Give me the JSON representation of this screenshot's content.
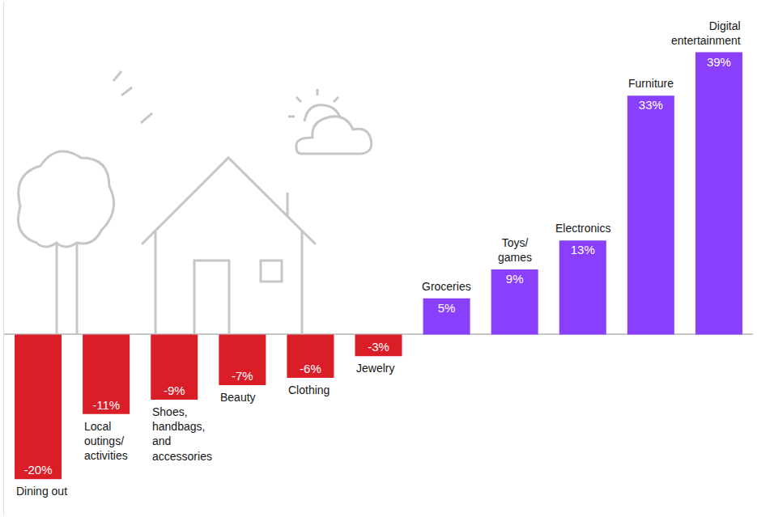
{
  "chart_data": {
    "type": "bar",
    "categories": [
      "Dining out",
      "Local outings/ activities",
      "Shoes, handbags, and accessories",
      "Beauty",
      "Clothing",
      "Jewelry",
      "Groceries",
      "Toys/ games",
      "Electronics",
      "Furniture",
      "Digital entertainment"
    ],
    "values": [
      -20,
      -11,
      -9,
      -7,
      -6,
      -3,
      5,
      9,
      13,
      33,
      39
    ],
    "value_labels": [
      "-20%",
      "-11%",
      "-9%",
      "-7%",
      "-6%",
      "-3%",
      "5%",
      "9%",
      "13%",
      "33%",
      "39%"
    ],
    "colors": [
      "#da1e28",
      "#da1e28",
      "#da1e28",
      "#da1e28",
      "#da1e28",
      "#da1e28",
      "#8a3ffc",
      "#8a3ffc",
      "#8a3ffc",
      "#8a3ffc",
      "#8a3ffc"
    ],
    "ylim": [
      -25,
      46
    ],
    "yticks": [
      0
    ],
    "data_labels": true,
    "tick_labels": false
  }
}
